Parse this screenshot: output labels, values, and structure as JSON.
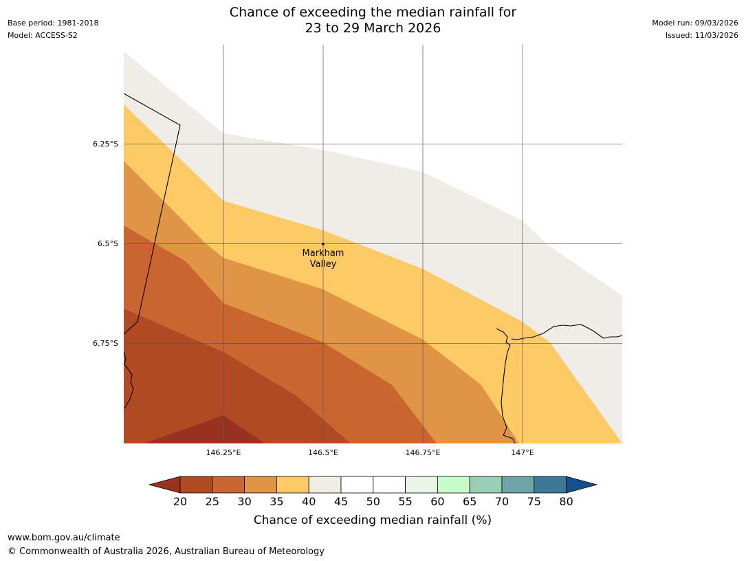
{
  "header": {
    "base_period": "Base period: 1981-2018",
    "model": "Model: ACCESS-S2",
    "model_run": "Model run: 09/03/2026",
    "issued": "Issued: 11/03/2026"
  },
  "title": {
    "line1": "Chance of exceeding the median rainfall for",
    "line2": "23 to 29 March 2026"
  },
  "map": {
    "lat_labels": [
      "6.25°S",
      "6.5°S",
      "6.75°S"
    ],
    "lon_labels": [
      "146.25°E",
      "146.5°E",
      "146.75°E",
      "147°E"
    ],
    "place": {
      "name_line1": "Markham",
      "name_line2": "Valley"
    },
    "colors": {
      "c20_25": "#b04a24",
      "c25_30": "#c96531",
      "c30_35": "#e09445",
      "c35_40": "#feca65",
      "c40_45": "#f0ece6",
      "below20": "#983220"
    }
  },
  "colorbar": {
    "ticks": [
      "20",
      "25",
      "30",
      "35",
      "40",
      "45",
      "50",
      "55",
      "60",
      "65",
      "70",
      "75",
      "80"
    ],
    "colors": [
      "#b04a24",
      "#c96531",
      "#e09445",
      "#feca65",
      "#f0ece6",
      "#ffffff",
      "#ffffff",
      "#e8f6e7",
      "#c8fcc8",
      "#9acfb7",
      "#6fa5a6",
      "#3f7796"
    ],
    "low_color": "#983220",
    "high_color": "#13508c",
    "label": "Chance of exceeding median rainfall (%)"
  },
  "footer": {
    "url": "www.bom.gov.au/climate",
    "copyright": "© Commonwealth of Australia 2026, Australian Bureau of Meteorology"
  }
}
